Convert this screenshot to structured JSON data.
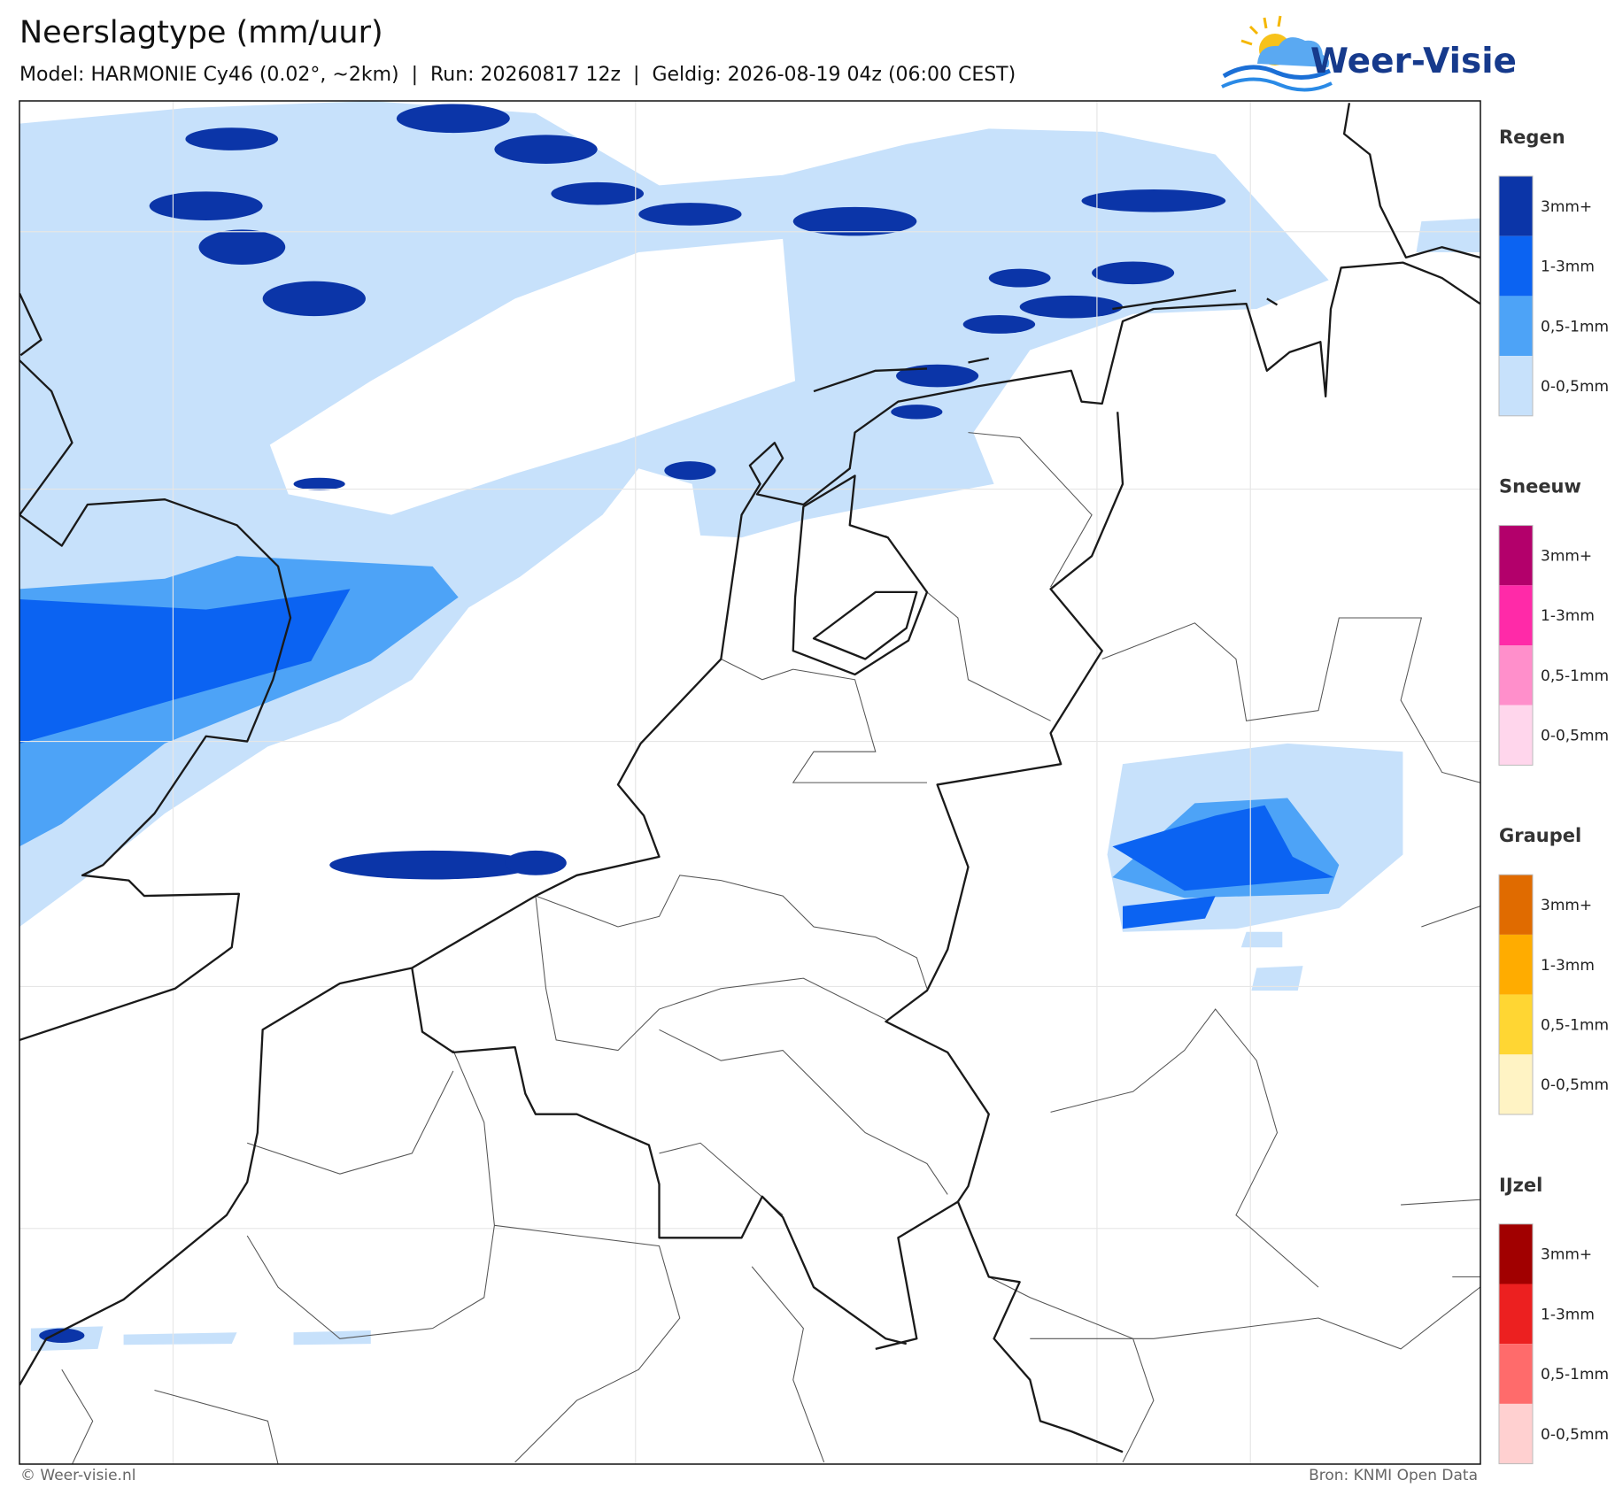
{
  "header": {
    "title": "Neerslagtype (mm/uur)",
    "subtitle": "Model: HARMONIE Cy46 (0.02°, ~2km)  |  Run: 20260817 12z  |  Geldig: 2026-08-19 04z (06:00 CEST)"
  },
  "logo": {
    "text": "Weer-Visie"
  },
  "legend": [
    {
      "title": "Regen",
      "items": [
        {
          "label": "3mm+",
          "color": "#0b35a8"
        },
        {
          "label": "1-3mm",
          "color": "#0b63f2"
        },
        {
          "label": "0,5-1mm",
          "color": "#4da3f7"
        },
        {
          "label": "0-0,5mm",
          "color": "#c7e1fb"
        }
      ]
    },
    {
      "title": "Sneeuw",
      "items": [
        {
          "label": "3mm+",
          "color": "#b3006b"
        },
        {
          "label": "1-3mm",
          "color": "#ff2aa8"
        },
        {
          "label": "0,5-1mm",
          "color": "#ff8fcb"
        },
        {
          "label": "0-0,5mm",
          "color": "#ffd6ec"
        }
      ]
    },
    {
      "title": "Graupel",
      "items": [
        {
          "label": "3mm+",
          "color": "#e06b00"
        },
        {
          "label": "1-3mm",
          "color": "#ffac00"
        },
        {
          "label": "0,5-1mm",
          "color": "#ffd633"
        },
        {
          "label": "0-0,5mm",
          "color": "#fff3c4"
        }
      ]
    },
    {
      "title": "IJzel",
      "items": [
        {
          "label": "3mm+",
          "color": "#a10000"
        },
        {
          "label": "1-3mm",
          "color": "#ec2020"
        },
        {
          "label": "0,5-1mm",
          "color": "#ff6b6b"
        },
        {
          "label": "0-0,5mm",
          "color": "#ffd0d0"
        }
      ]
    }
  ],
  "footer": {
    "copyright": "© Weer-visie.nl",
    "source": "Bron: KNMI Open Data"
  }
}
